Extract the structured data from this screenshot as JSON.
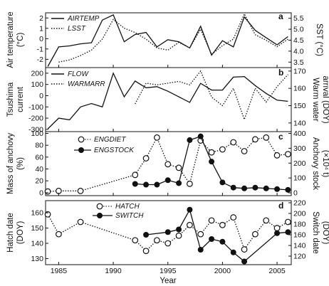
{
  "figure": {
    "xlabel": "Year",
    "x_ticks": [
      1985,
      1990,
      1995,
      2000,
      2005
    ]
  },
  "chart_data": [
    {
      "panel": "a",
      "type": "line",
      "xlim": [
        1983.8,
        2006.3
      ],
      "ylabel_left": "Air temperature (°C)",
      "ylabel_right": "SST (°C)",
      "ylim_left": [
        -2.8,
        2.5
      ],
      "ylim_right": [
        3.25,
        5.75
      ],
      "yticks_left": [
        2,
        1,
        0,
        -1,
        -2
      ],
      "yticks_right": [
        "5.5",
        "5.0",
        "4.5",
        "4.0",
        "3.5"
      ],
      "yticks_right_values": [
        5.5,
        5.0,
        4.5,
        4.0,
        3.5
      ],
      "legend": [
        "AIRTEMP",
        "LSST"
      ],
      "series": [
        {
          "name": "AIRTEMP",
          "axis": "left",
          "style": "solid",
          "x": [
            1984,
            1985,
            1986,
            1987,
            1988,
            1989,
            1990,
            1991,
            1992,
            1993,
            1994,
            1995,
            1996,
            1997,
            1998,
            1999,
            2000,
            2001,
            2002,
            2003,
            2004,
            2005,
            2006
          ],
          "y": [
            -2.7,
            -0.8,
            -0.7,
            -0.5,
            -0.4,
            1.8,
            2.3,
            -0.3,
            0.4,
            0.6,
            -0.8,
            -0.1,
            -0.3,
            -0.9,
            1.2,
            -1.6,
            -0.2,
            -0.8,
            2.1,
            0.8,
            0.1,
            -0.6,
            0.2
          ]
        },
        {
          "name": "LSST",
          "axis": "right",
          "style": "dotted",
          "x": [
            1985,
            1986,
            1987,
            1988,
            1989,
            1990,
            1991,
            1992,
            1993,
            1994,
            1995,
            1996,
            1997,
            1998,
            1999,
            2000,
            2001,
            2002,
            2003,
            2004,
            2005,
            2006
          ],
          "y": [
            3.5,
            3.6,
            3.8,
            4.05,
            4.55,
            5.45,
            5.05,
            4.85,
            4.55,
            4.15,
            4.05,
            4.4,
            4.15,
            5.0,
            3.85,
            4.25,
            4.55,
            5.7,
            4.75,
            4.5,
            4.2,
            4.55
          ]
        }
      ]
    },
    {
      "panel": "b",
      "type": "line",
      "ylabel_left": "Tsushima current",
      "ylabel_right": "Warm water arrival (DOY)",
      "ylim_left": [
        -320,
        250
      ],
      "ylim_right": [
        135,
        172
      ],
      "yticks_left": [
        200,
        100,
        0,
        -100,
        -200,
        -300
      ],
      "yticks_right": [
        170,
        160,
        150,
        140
      ],
      "legend": [
        "FLOW",
        "WARMARR"
      ],
      "series": [
        {
          "name": "FLOW",
          "axis": "left",
          "style": "solid",
          "x": [
            1984,
            1985,
            1986,
            1987,
            1988,
            1989,
            1990,
            1991,
            1992,
            1993,
            1994,
            1995,
            1996,
            1997,
            1998,
            1999,
            2000,
            2001,
            2002,
            2003,
            2004,
            2005,
            2006
          ],
          "y": [
            -295,
            -200,
            -215,
            -100,
            -70,
            -100,
            200,
            -10,
            130,
            70,
            80,
            40,
            -10,
            -60,
            110,
            50,
            50,
            165,
            170,
            90,
            20,
            -40,
            -50
          ]
        },
        {
          "name": "WARMARR",
          "axis": "right",
          "style": "dotted",
          "x": [
            1992,
            1993,
            1994,
            1995,
            1996,
            1997,
            1998,
            1999,
            2000,
            2001,
            2002,
            2003,
            2004,
            2005,
            2006
          ],
          "y": [
            151,
            163,
            162,
            163,
            164,
            162,
            170,
            155,
            150,
            160,
            142,
            160,
            152,
            161,
            168
          ]
        }
      ]
    },
    {
      "panel": "c",
      "type": "scatter",
      "ylabel_left": "Mass of anchovy (%)",
      "ylabel_right": "Anchovy stock (×10⁴ t)",
      "ylim_left": [
        -5,
        103
      ],
      "ylim_right": [
        -19,
        412
      ],
      "yticks_left": [
        100,
        80,
        60,
        40,
        20,
        0
      ],
      "yticks_right": [
        400,
        300,
        200,
        100,
        0
      ],
      "legend": [
        "ENGDIET",
        "ENGSTOCK"
      ],
      "series": [
        {
          "name": "ENGDIET",
          "axis": "left",
          "marker": "open-circle",
          "line": "dotted",
          "x": [
            1984,
            1985,
            1987,
            1992,
            1993,
            1994,
            1995,
            1996,
            1997,
            1998,
            1999,
            2000,
            2001,
            2002,
            2003,
            2004,
            2005,
            2006
          ],
          "y": [
            2,
            3,
            3,
            30,
            58,
            93,
            48,
            42,
            15,
            88,
            68,
            73,
            85,
            70,
            90,
            93,
            63,
            65
          ]
        },
        {
          "name": "ENGSTOCK",
          "axis": "right",
          "marker": "filled-circle",
          "line": "solid",
          "x": [
            1992,
            1993,
            1994,
            1995,
            1996,
            1997,
            1998,
            1999,
            2000,
            2001,
            2002,
            2003,
            2004,
            2005,
            2006
          ],
          "y": [
            60,
            55,
            55,
            85,
            65,
            355,
            380,
            210,
            70,
            35,
            30,
            35,
            30,
            25,
            20
          ]
        }
      ]
    },
    {
      "panel": "d",
      "type": "scatter",
      "ylabel_left": "Hatch date (DOY)",
      "ylabel_right": "Switch date (DOY)",
      "ylim_left": [
        126,
        168
      ],
      "ylim_right": [
        104,
        224
      ],
      "yticks_left": [
        160,
        150,
        140,
        130
      ],
      "yticks_right": [
        220,
        200,
        180,
        160,
        140,
        120
      ],
      "legend": [
        "HATCH",
        "SWITCH"
      ],
      "series": [
        {
          "name": "HATCH",
          "axis": "left",
          "marker": "open-circle",
          "line": "dotted",
          "x": [
            1984,
            1985,
            1987,
            1992,
            1993,
            1994,
            1995,
            1996,
            1997,
            1998,
            1999,
            2000,
            2001,
            2002,
            2003,
            2004,
            2005,
            2006
          ],
          "y": [
            159,
            146,
            154,
            142,
            135,
            142,
            140,
            145,
            152,
            146,
            155,
            152,
            157,
            136,
            146,
            155,
            150,
            154
          ]
        },
        {
          "name": "SWITCH",
          "axis": "right",
          "marker": "filled-circle",
          "line": "solid",
          "x": [
            1993,
            1995,
            1996,
            1997,
            1998,
            1999,
            2000,
            2001,
            2002,
            2005,
            2006
          ],
          "y": [
            160,
            165,
            170,
            207,
            132,
            152,
            147,
            127,
            110,
            163,
            165
          ]
        }
      ]
    }
  ],
  "panel_labels": [
    "a",
    "b",
    "c",
    "d"
  ]
}
